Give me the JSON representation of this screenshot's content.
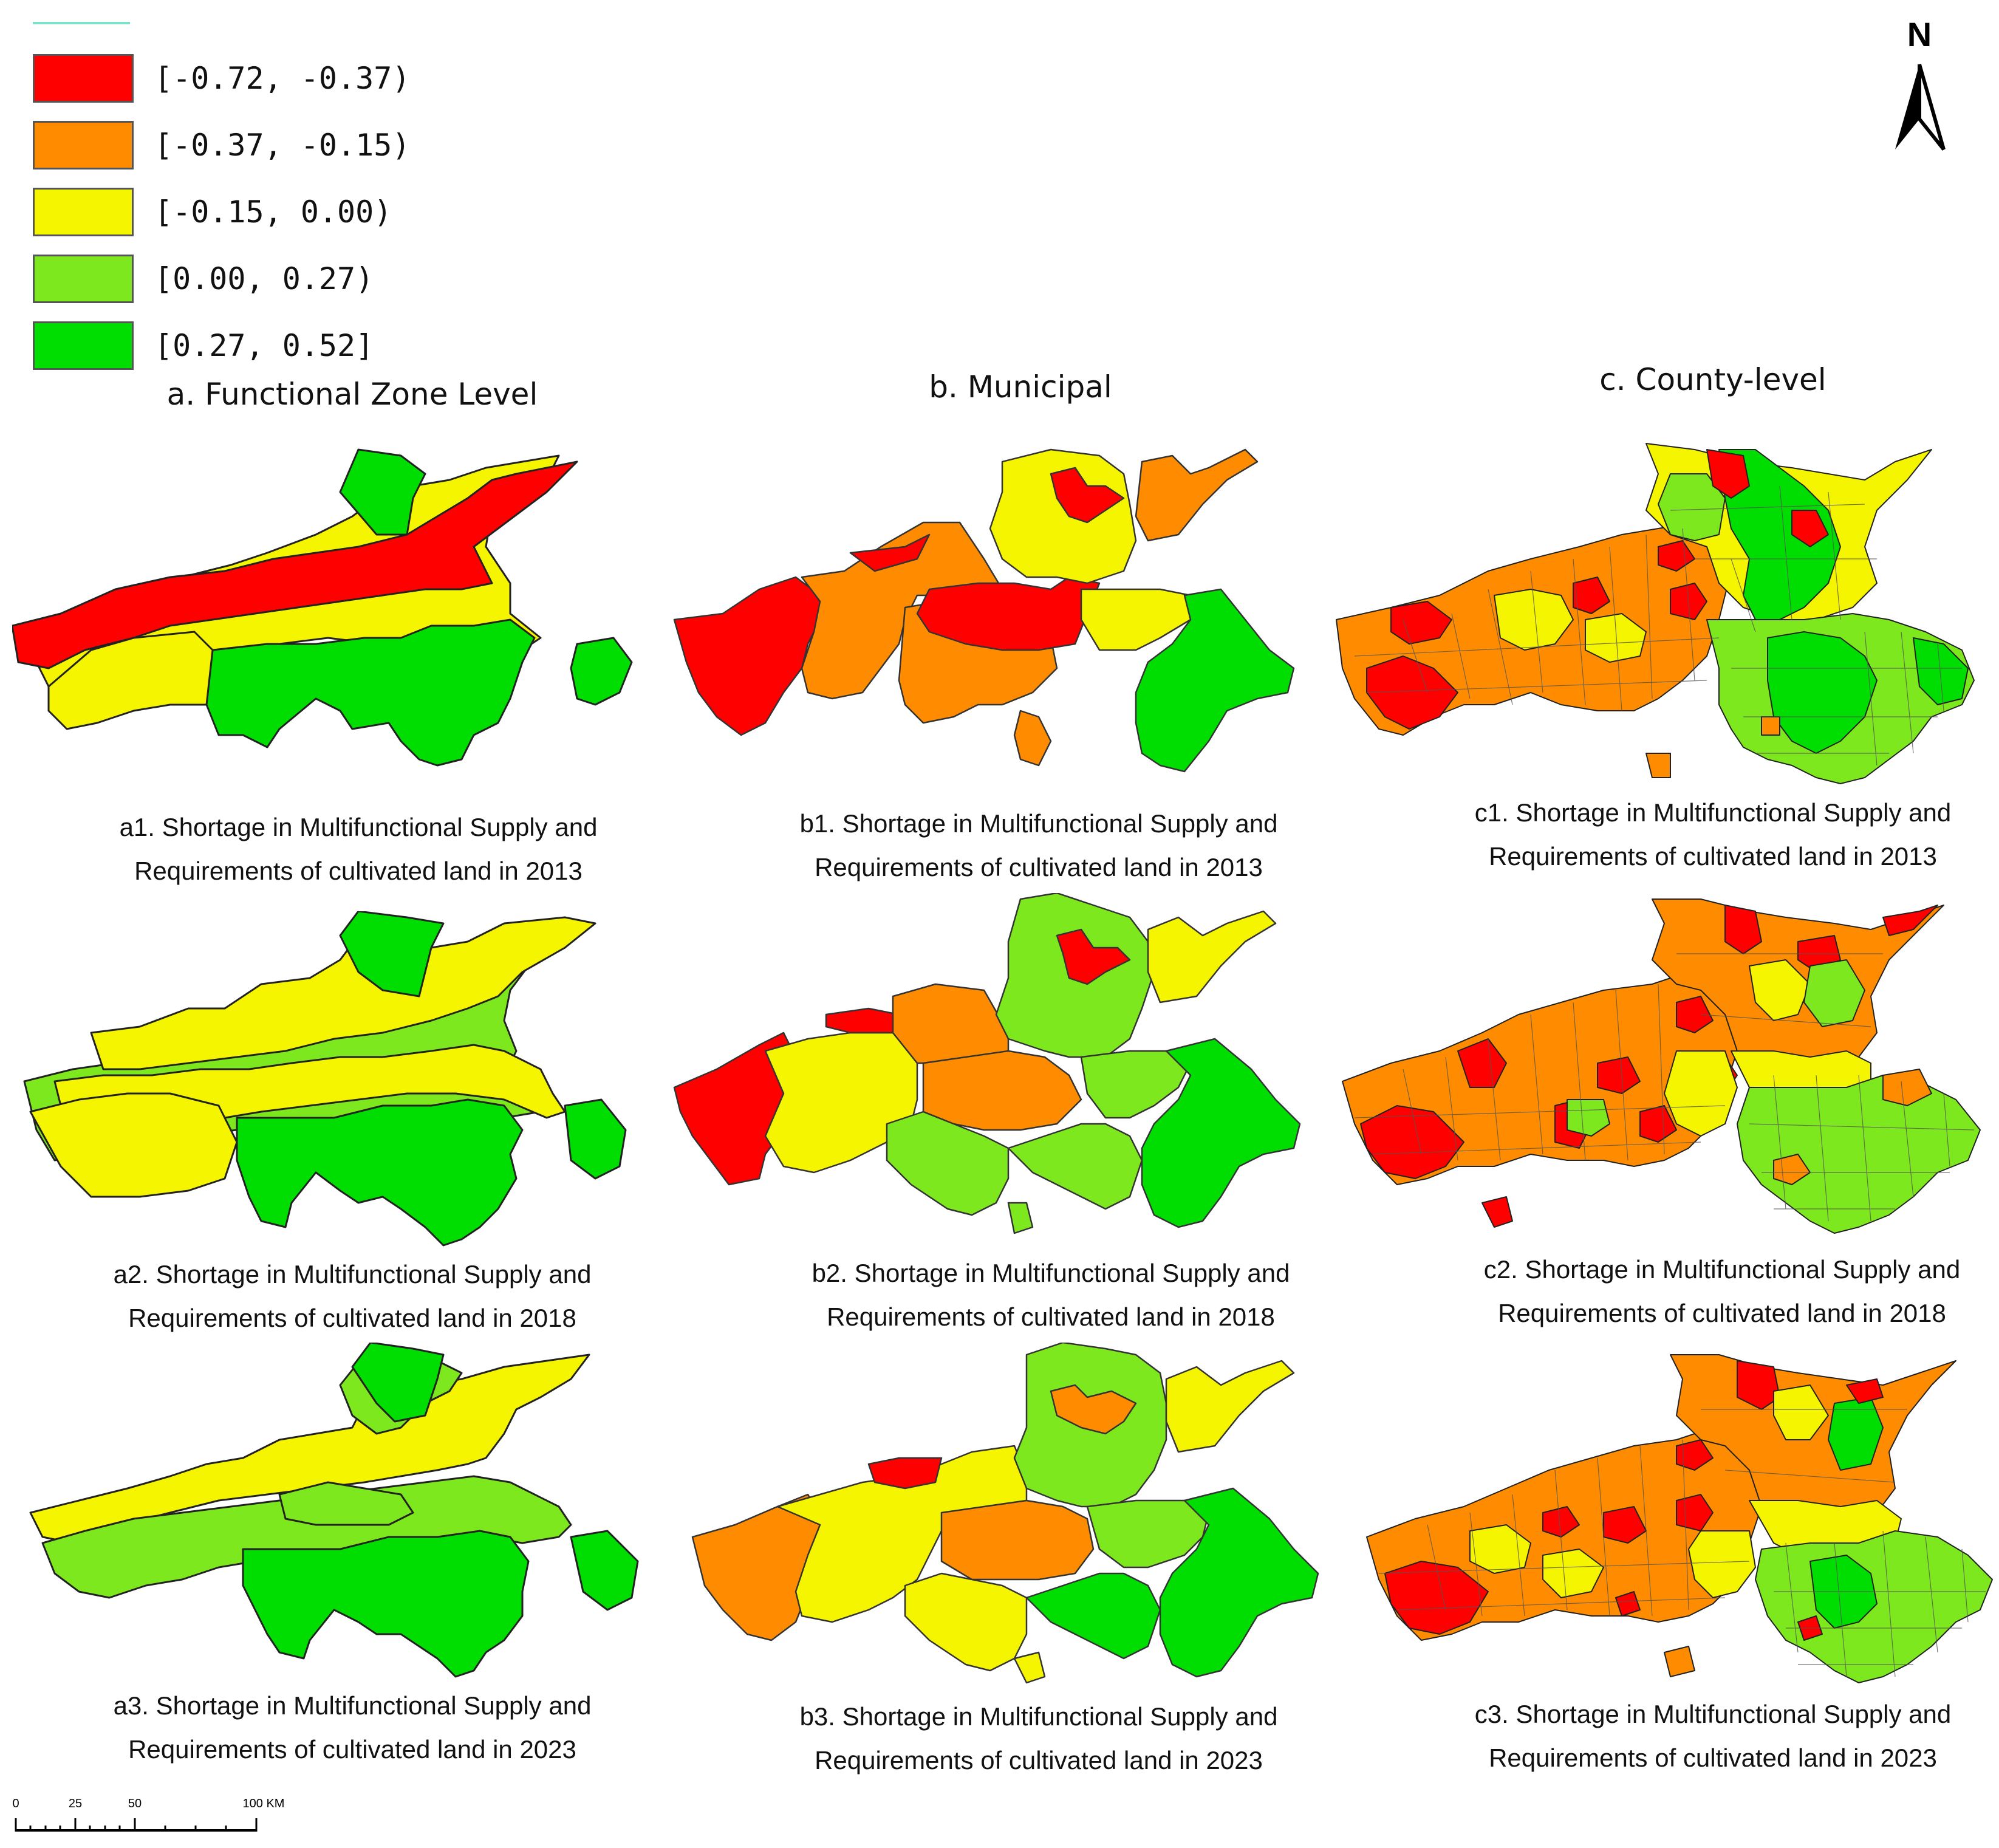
{
  "legend": {
    "items": [
      {
        "label": "[-0.72, -0.37)",
        "color": "#ff0000"
      },
      {
        "label": "[-0.37, -0.15)",
        "color": "#ff8c00"
      },
      {
        "label": "[-0.15, 0.00)",
        "color": "#f5f500"
      },
      {
        "label": "[0.00, 0.27)",
        "color": "#7ee81e"
      },
      {
        "label": "[0.27, 0.52]",
        "color": "#00dd00"
      }
    ]
  },
  "north_label": "N",
  "columns": {
    "a": "a. Functional Zone Level",
    "b": "b. Municipal",
    "c": "c. County-level"
  },
  "captions": {
    "a1": {
      "line1": "a1. Shortage in Multifunctional Supply and",
      "line2": "Requirements of cultivated land in 2013"
    },
    "a2": {
      "line1": "a2. Shortage in Multifunctional Supply and",
      "line2": "Requirements of cultivated land in 2018"
    },
    "a3": {
      "line1": "a3. Shortage in Multifunctional Supply and",
      "line2": "Requirements of cultivated land in 2023"
    },
    "b1": {
      "line1": "b1. Shortage in Multifunctional Supply and",
      "line2": "Requirements of cultivated land in 2013"
    },
    "b2": {
      "line1": "b2. Shortage in Multifunctional Supply and",
      "line2": "Requirements of cultivated land in 2018"
    },
    "b3": {
      "line1": "b3. Shortage in Multifunctional Supply and",
      "line2": "Requirements of cultivated land in 2023"
    },
    "c1": {
      "line1": "c1. Shortage in Multifunctional Supply and",
      "line2": "Requirements of cultivated land in 2013"
    },
    "c2": {
      "line1": "c2. Shortage in Multifunctional Supply and",
      "line2": "Requirements of cultivated land in 2018"
    },
    "c3": {
      "line1": "c3. Shortage in Multifunctional Supply and",
      "line2": "Requirements of cultivated land in 2023"
    }
  },
  "scale": {
    "t0": "0",
    "t1": "25",
    "t2": "50",
    "t3": "100 KM"
  }
}
